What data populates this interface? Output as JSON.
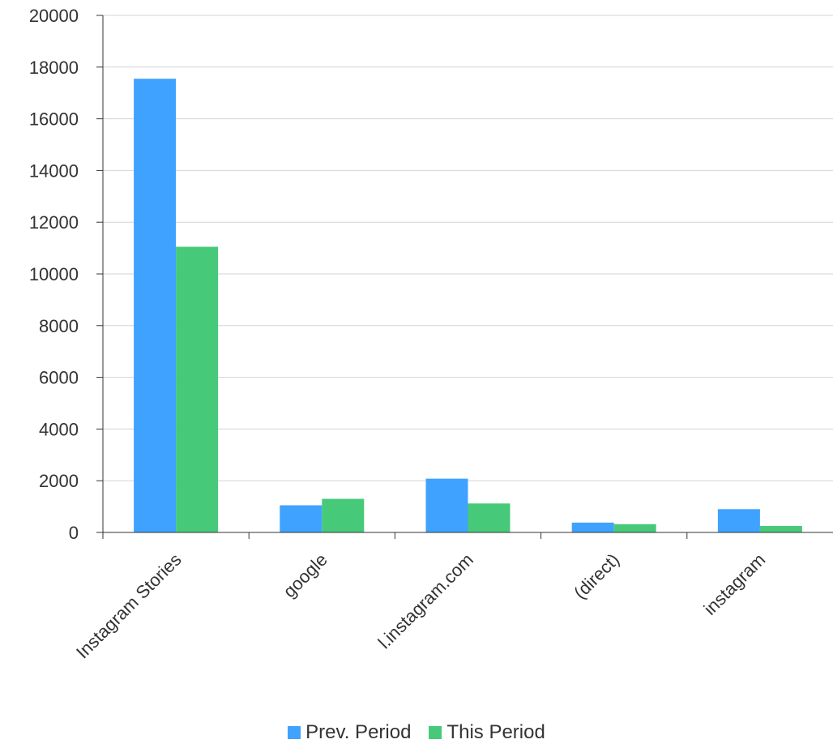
{
  "chart_data": {
    "type": "bar",
    "categories": [
      "Instagram Stories",
      "google",
      "l.instagram.com",
      "(direct)",
      "instagram"
    ],
    "series": [
      {
        "name": "Prev. Period",
        "values": [
          17550,
          1050,
          2080,
          380,
          900
        ],
        "color": "#3fa2ff"
      },
      {
        "name": "This Period",
        "values": [
          11050,
          1300,
          1120,
          320,
          250
        ],
        "color": "#47c97a"
      }
    ],
    "yticks": [
      0,
      2000,
      4000,
      6000,
      8000,
      10000,
      12000,
      14000,
      16000,
      18000,
      20000
    ],
    "ylim": [
      0,
      20000
    ],
    "title": "",
    "xlabel": "",
    "ylabel": "",
    "grid": true,
    "legend_position": "bottom"
  }
}
